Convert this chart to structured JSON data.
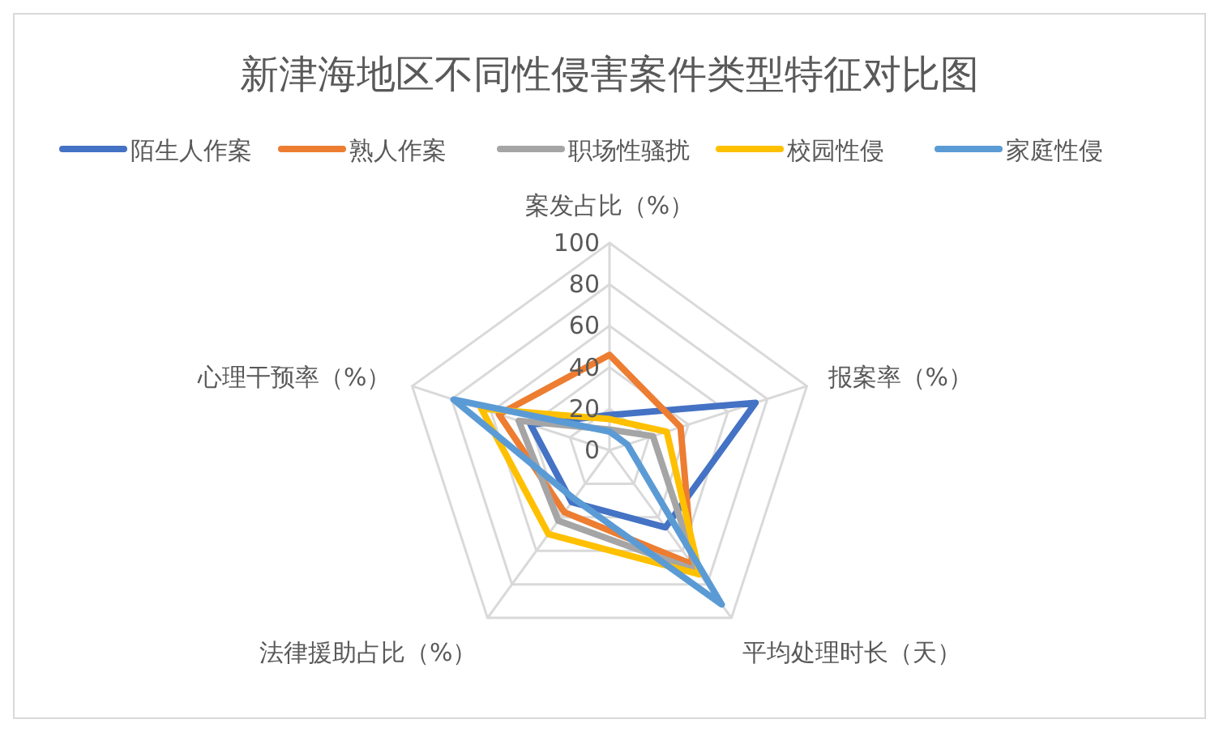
{
  "chart_data": {
    "type": "radar",
    "title": "新津海地区不同性侵害案件类型特征对比图",
    "categories": [
      "案发占比（%）",
      "报案率（%）",
      "平均处理时长（天）",
      "法律援助占比（%）",
      "心理干预率（%）"
    ],
    "ylim": [
      0,
      100
    ],
    "yticks": [
      0,
      20,
      40,
      60,
      80,
      100
    ],
    "grid": true,
    "legend": "top",
    "series": [
      {
        "name": "陌生人作案",
        "color": "#4472c4",
        "values": [
          17,
          74,
          46,
          31,
          40
        ]
      },
      {
        "name": "熟人作案",
        "color": "#ed7d31",
        "values": [
          46,
          36,
          68,
          37,
          56
        ]
      },
      {
        "name": "职场性骚扰",
        "color": "#a5a5a5",
        "values": [
          10,
          22,
          72,
          42,
          46
        ]
      },
      {
        "name": "校园性侵",
        "color": "#ffc000",
        "values": [
          15,
          29,
          74,
          50,
          65
        ]
      },
      {
        "name": "家庭性侵",
        "color": "#5b9bd5",
        "values": [
          9,
          9,
          92,
          29,
          79
        ]
      }
    ]
  }
}
